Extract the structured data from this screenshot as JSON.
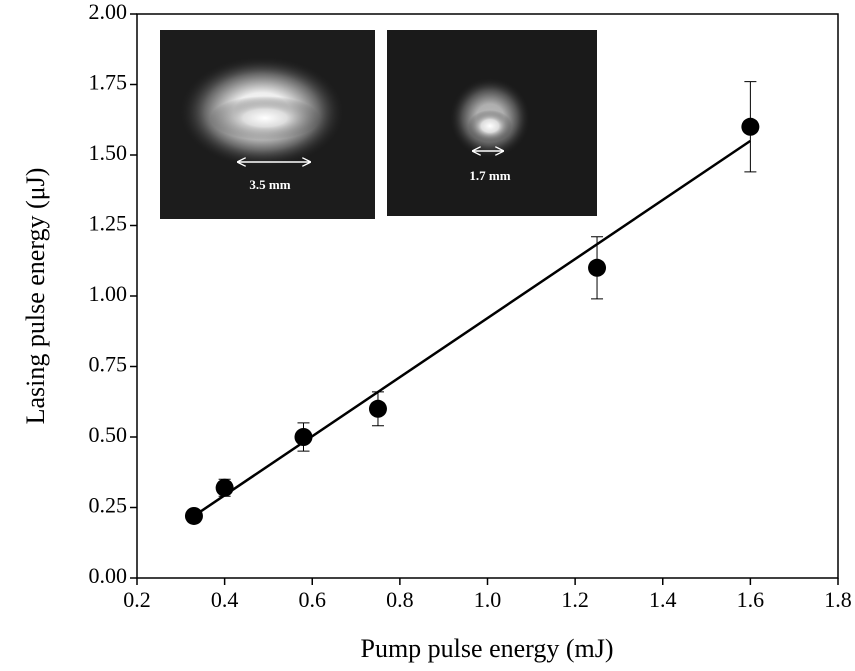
{
  "chart_data": {
    "type": "scatter",
    "x_label": "Pump pulse energy (mJ)",
    "y_label": "Lasing pulse energy (μJ)",
    "x": [
      0.33,
      0.4,
      0.58,
      0.75,
      1.25,
      1.6
    ],
    "values": [
      0.22,
      0.32,
      0.5,
      0.6,
      1.1,
      1.6
    ],
    "errors": [
      0.02,
      0.03,
      0.05,
      0.06,
      0.11,
      0.16
    ],
    "color": "#000000",
    "fit": {
      "x": [
        0.33,
        1.6
      ],
      "y": [
        0.22,
        1.55
      ]
    },
    "xlim": [
      0.2,
      1.8
    ],
    "xticks": [
      0.2,
      0.4,
      0.6,
      0.8,
      {
        "value": 1.0,
        "label": "1.0"
      },
      1.2,
      1.4,
      1.6,
      1.8
    ],
    "ylim": [
      0,
      2
    ],
    "yticks": [
      {
        "value": 0,
        "label": "0.00"
      },
      0.25,
      {
        "value": 0.5,
        "label": "0.50"
      },
      0.75,
      {
        "value": 1,
        "label": "1.00"
      },
      1.25,
      {
        "value": 1.5,
        "label": "1.50"
      },
      1.75,
      {
        "value": 2,
        "label": "2.00"
      }
    ],
    "annotations": [
      "3.5 mm",
      "1.7 mm"
    ]
  }
}
